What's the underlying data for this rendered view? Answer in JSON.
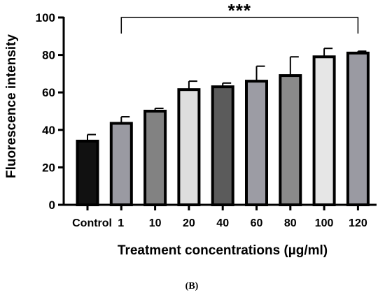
{
  "chart_data": {
    "type": "bar",
    "xlabel": "Treatment concentrations (µg/ml)",
    "ylabel": "Fluorescence intensity",
    "ylim": [
      0,
      100
    ],
    "yticks": [
      0,
      20,
      40,
      60,
      80,
      100
    ],
    "categories": [
      "Control",
      "1",
      "10",
      "20",
      "40",
      "60",
      "80",
      "100",
      "120"
    ],
    "values": [
      34,
      43.5,
      50,
      61.5,
      63,
      66,
      69,
      79,
      81
    ],
    "error_upper": [
      3.5,
      3.5,
      1.5,
      4.5,
      2,
      8,
      10,
      4.5,
      1
    ],
    "bar_colors": [
      "#111111",
      "#9a9aa2",
      "#828282",
      "#dedede",
      "#5b5b5b",
      "#9c9ca4",
      "#8a8a8a",
      "#e6e6e6",
      "#9a9aa2"
    ],
    "significance": {
      "label": "***",
      "from": "1",
      "to": "120"
    },
    "grid": false,
    "caption": "(B)"
  }
}
